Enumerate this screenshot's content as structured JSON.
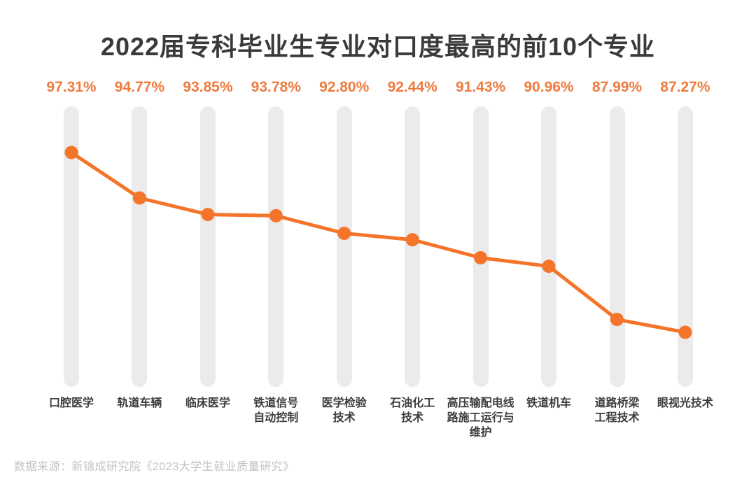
{
  "source_note": "数据来源：新锦成研究院《2023大学生就业质量研究》",
  "colors": {
    "line": "#f4742a",
    "dot": "#f4742a",
    "value_text": "#ee7b3e",
    "bar_background": "#ebebeb",
    "title_text": "#3a3a3a",
    "category_text": "#3d3d3d",
    "source_text": "#c3c3c3"
  },
  "chart_data": {
    "type": "line",
    "title": "2022届专科毕业生专业对口度最高的前10个专业",
    "categories": [
      "口腔医学",
      "轨道车辆",
      "临床医学",
      "铁道信号自动控制",
      "医学检验技术",
      "石油化工技术",
      "高压输配电线路施工运行与维护",
      "铁道机车",
      "道路桥梁工程技术",
      "眼视光技术"
    ],
    "category_display": [
      "口腔医学",
      "轨道车辆",
      "临床医学",
      "铁道信号\n自动控制",
      "医学检验\n技术",
      "石油化工\n技术",
      "高压输配电线\n路施工运行与\n维护",
      "铁道机车",
      "道路桥梁\n工程技术",
      "眼视光技术"
    ],
    "values": [
      97.31,
      94.77,
      93.85,
      93.78,
      92.8,
      92.44,
      91.43,
      90.96,
      87.99,
      87.27
    ],
    "value_labels": [
      "97.31%",
      "94.77%",
      "93.85%",
      "93.78%",
      "92.80%",
      "92.44%",
      "91.43%",
      "90.96%",
      "87.99%",
      "87.27%"
    ],
    "ylabel": "",
    "xlabel": "",
    "ylim": [
      85,
      100
    ],
    "grid": false,
    "legend": "none",
    "line_color": "#f4742a",
    "unit": "%"
  }
}
